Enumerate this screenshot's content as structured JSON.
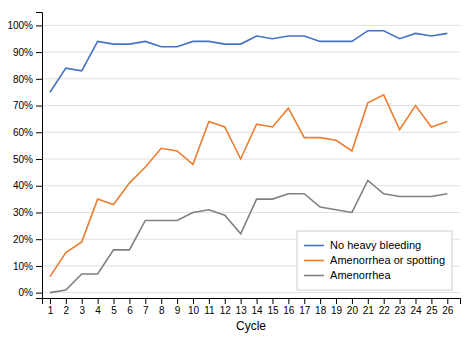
{
  "chart_data": {
    "type": "line",
    "xlabel": "Cycle",
    "x": [
      1,
      2,
      3,
      4,
      5,
      6,
      7,
      8,
      9,
      10,
      11,
      12,
      13,
      14,
      15,
      16,
      17,
      18,
      19,
      20,
      21,
      22,
      23,
      24,
      25,
      26
    ],
    "series": [
      {
        "name": "No heavy bleeding",
        "color": "#4472c4",
        "values": [
          75,
          84,
          83,
          94,
          93,
          93,
          94,
          92,
          92,
          94,
          94,
          93,
          93,
          96,
          95,
          96,
          96,
          94,
          94,
          94,
          98,
          98,
          95,
          97,
          96,
          97
        ]
      },
      {
        "name": "Amenorrhea or spotting",
        "color": "#ed7d31",
        "values": [
          6,
          15,
          19,
          35,
          33,
          41,
          47,
          54,
          53,
          48,
          64,
          62,
          50,
          63,
          62,
          69,
          58,
          58,
          57,
          53,
          71,
          74,
          61,
          70,
          62,
          64
        ]
      },
      {
        "name": "Amenorrhea",
        "color": "#808080",
        "values": [
          0,
          1,
          7,
          7,
          16,
          16,
          27,
          27,
          27,
          30,
          31,
          29,
          22,
          35,
          35,
          37,
          37,
          32,
          31,
          30,
          42,
          37,
          36,
          36,
          36,
          37
        ]
      }
    ],
    "xlim": [
      0.5,
      26.8
    ],
    "xticks": [
      1,
      2,
      3,
      4,
      5,
      6,
      7,
      8,
      9,
      10,
      11,
      12,
      13,
      14,
      15,
      16,
      17,
      18,
      19,
      20,
      21,
      22,
      23,
      24,
      25,
      26
    ],
    "ylim": [
      -2,
      105
    ],
    "yticks": [
      {
        "value": 0,
        "label": "0%"
      },
      {
        "value": 10,
        "label": "10%"
      },
      {
        "value": 20,
        "label": "20%"
      },
      {
        "value": 30,
        "label": "30%"
      },
      {
        "value": 40,
        "label": "40%"
      },
      {
        "value": 50,
        "label": "50%"
      },
      {
        "value": 60,
        "label": "60%"
      },
      {
        "value": 70,
        "label": "70%"
      },
      {
        "value": 80,
        "label": "80%"
      },
      {
        "value": 90,
        "label": "90%"
      },
      {
        "value": 100,
        "label": "100%"
      }
    ],
    "grid": true,
    "legend": "lower right"
  }
}
